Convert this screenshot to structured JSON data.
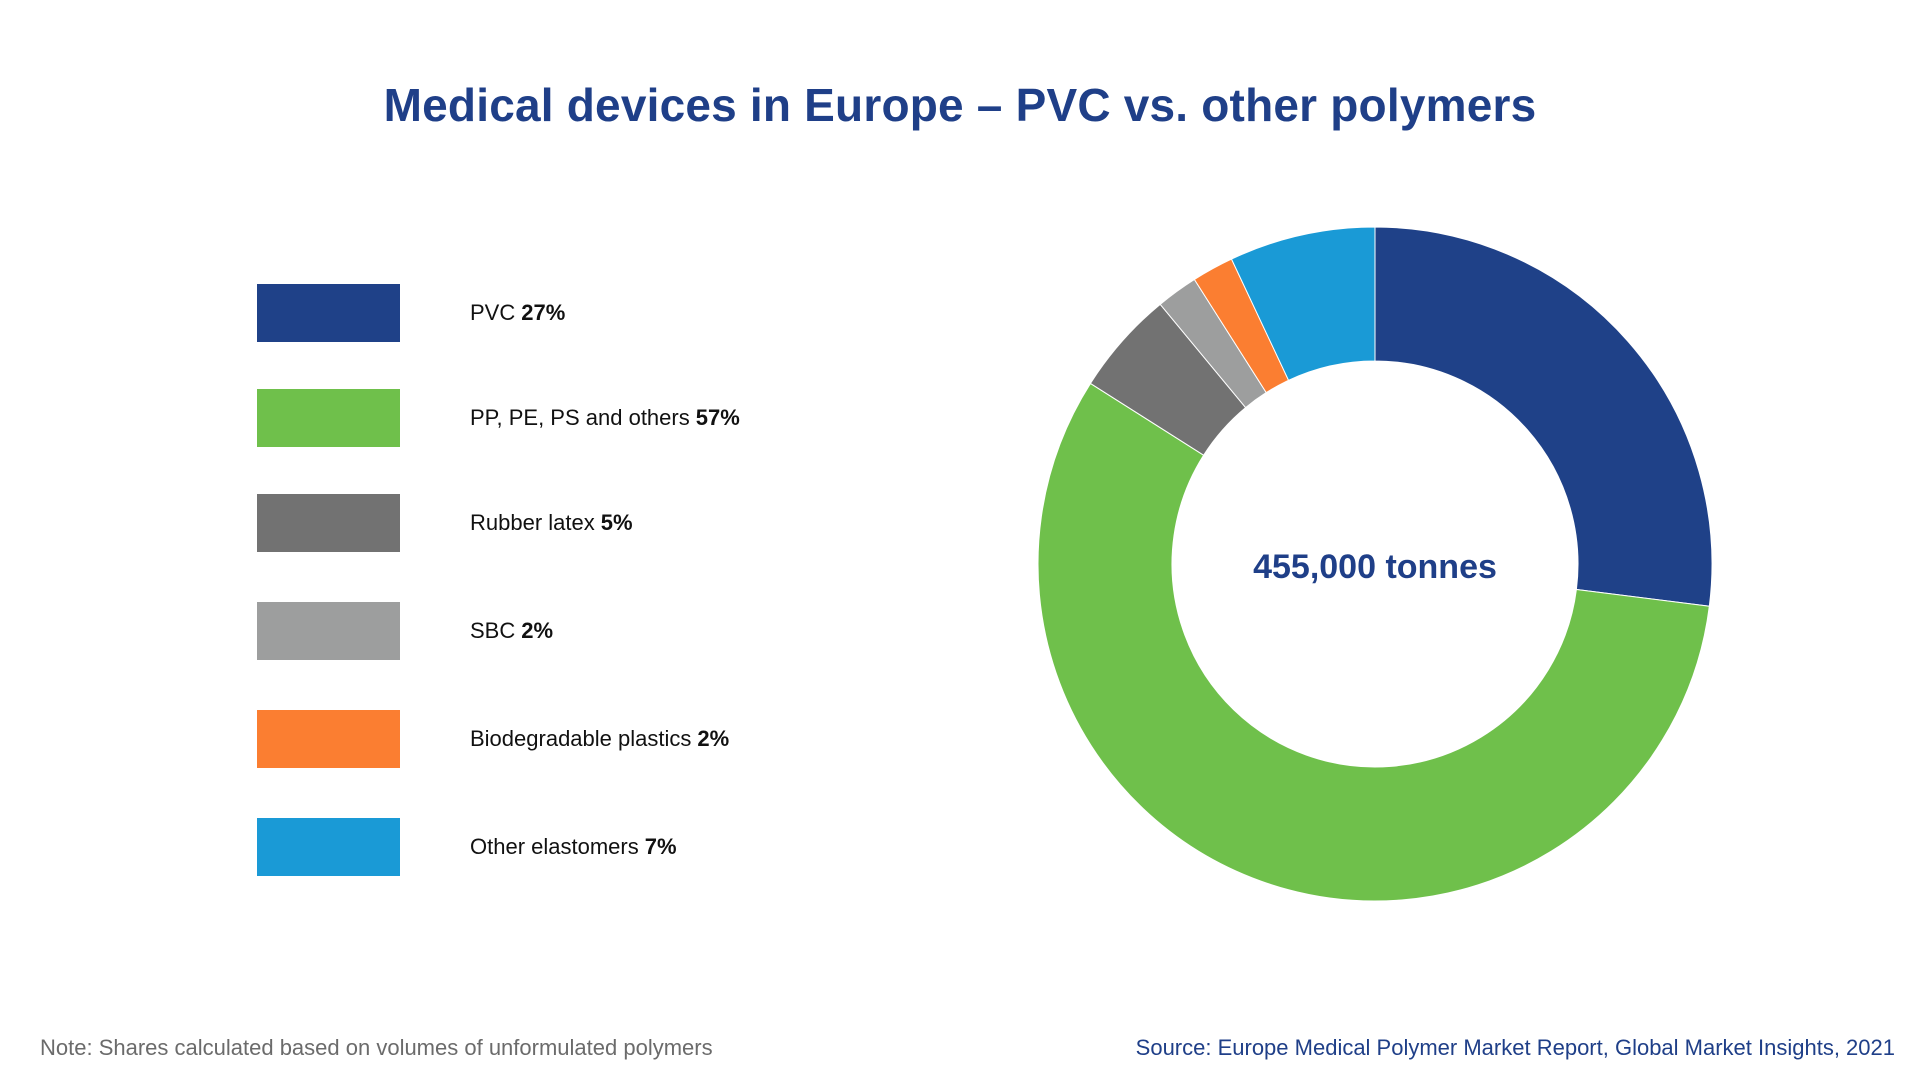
{
  "title": "Medical devices in Europe – PVC vs. other polymers",
  "center_label": "455,000 tonnes",
  "note": "Note: Shares calculated based on volumes of unformulated polymers",
  "source": "Source: Europe Medical Polymer Market Report, Global Market Insights, 2021",
  "colors": {
    "title": "#1f3f88",
    "pvc": "#1f4188",
    "pp_pe_ps": "#6fc04b",
    "rubber_latex": "#727272",
    "sbc": "#9d9e9e",
    "biodegradable": "#fb7e31",
    "other_elastomers": "#1a9ad6"
  },
  "legend": [
    {
      "name": "PVC",
      "pct": "27%",
      "color": "#1f4188"
    },
    {
      "name": "PP, PE, PS and others",
      "pct": "57%",
      "color": "#6fc04b"
    },
    {
      "name": "Rubber latex",
      "pct": "5%",
      "color": "#727272"
    },
    {
      "name": "SBC",
      "pct": "2%",
      "color": "#9d9e9e"
    },
    {
      "name": "Biodegradable plastics",
      "pct": "2%",
      "color": "#fb7e31"
    },
    {
      "name": "Other elastomers",
      "pct": "7%",
      "color": "#1a9ad6"
    }
  ],
  "chart_data": {
    "type": "pie",
    "title": "Medical devices in Europe – PVC vs. other polymers",
    "categories": [
      "PVC",
      "PP, PE, PS and others",
      "Rubber latex",
      "SBC",
      "Biodegradable plastics",
      "Other elastomers"
    ],
    "values": [
      27,
      57,
      5,
      2,
      2,
      7
    ],
    "total_label": "455,000 tonnes",
    "colors": [
      "#1f4188",
      "#6fc04b",
      "#727272",
      "#9d9e9e",
      "#fb7e31",
      "#1a9ad6"
    ],
    "legend_position": "left"
  }
}
